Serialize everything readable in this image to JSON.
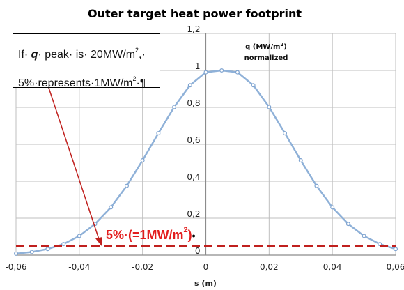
{
  "chart_data": {
    "type": "scatter",
    "title": "Outer target heat power footprint",
    "xlabel": "s (m)",
    "ylabel_line1": "q (MW/m",
    "ylabel_sup": "2",
    "ylabel_line1_end": ")",
    "ylabel_line2": "normalized",
    "xlim": [
      -0.06,
      0.06
    ],
    "ylim": [
      0,
      1.2
    ],
    "x_ticks": [
      {
        "value": -0.06,
        "label": "-0,06"
      },
      {
        "value": -0.04,
        "label": "-0,04"
      },
      {
        "value": -0.02,
        "label": "-0,02"
      },
      {
        "value": 0,
        "label": "0"
      },
      {
        "value": 0.02,
        "label": "0,02"
      },
      {
        "value": 0.04,
        "label": "0,04"
      },
      {
        "value": 0.06,
        "label": "0,06"
      }
    ],
    "y_ticks": [
      {
        "value": 0,
        "label": "0"
      },
      {
        "value": 0.2,
        "label": "0,2"
      },
      {
        "value": 0.4,
        "label": "0,4"
      },
      {
        "value": 0.6,
        "label": "0,6"
      },
      {
        "value": 0.8,
        "label": "0,8"
      },
      {
        "value": 1,
        "label": "1"
      },
      {
        "value": 1.2,
        "label": "1,2"
      }
    ],
    "grid": true,
    "series": [
      {
        "color": "#8fb1d8",
        "x": [
          -0.06,
          -0.055,
          -0.05,
          -0.045,
          -0.04,
          -0.035,
          -0.03,
          -0.025,
          -0.02,
          -0.015,
          -0.01,
          -0.005,
          0,
          0.005,
          0.01,
          0.015,
          0.02,
          0.025,
          0.03,
          0.035,
          0.04,
          0.045,
          0.05,
          0.055,
          0.06
        ],
        "y": [
          0.008,
          0.017,
          0.033,
          0.06,
          0.104,
          0.169,
          0.259,
          0.375,
          0.513,
          0.66,
          0.802,
          0.92,
          0.99,
          1.0,
          0.99,
          0.92,
          0.802,
          0.66,
          0.513,
          0.375,
          0.259,
          0.169,
          0.104,
          0.06,
          0.033
        ]
      }
    ],
    "threshold": {
      "value": 0.05,
      "color": "#c0201e"
    },
    "note": {
      "line1_a": "If· ",
      "line1_q": "q",
      "line1_b": "· peak· is· 20MW/m",
      "line1_sup": "2",
      "line1_end": ",·",
      "line2": "5%·represents·1MW/m",
      "line2_sup": "2",
      "line2_end": "·¶"
    },
    "threshold_label": {
      "text": "5%·(=1MW/m",
      "sup": "2",
      "end": ")",
      "mark": "•",
      "color": "#e31d1d"
    },
    "arrow_color": "#c0201e"
  }
}
